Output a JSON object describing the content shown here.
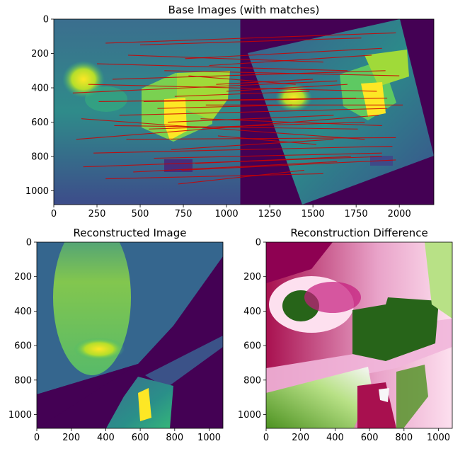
{
  "chart_data": [
    {
      "type": "image",
      "title": "Base Images (with matches)",
      "xlim": [
        0,
        2200
      ],
      "ylim": [
        1080,
        0
      ],
      "x_ticks": [
        0,
        250,
        500,
        750,
        1000,
        1250,
        1500,
        1750,
        2000
      ],
      "y_ticks": [
        0,
        200,
        400,
        600,
        800,
        1000
      ],
      "colormap": "viridis",
      "match_color": "#cc0000",
      "matches": [
        [
          200,
          380,
          1870,
          420
        ],
        [
          250,
          260,
          1700,
          300
        ],
        [
          110,
          430,
          1640,
          360
        ],
        [
          300,
          140,
          1980,
          80
        ],
        [
          130,
          700,
          1880,
          560
        ],
        [
          170,
          860,
          1900,
          800
        ],
        [
          350,
          620,
          1760,
          640
        ],
        [
          430,
          210,
          1560,
          250
        ],
        [
          520,
          480,
          1930,
          460
        ],
        [
          600,
          520,
          1380,
          500
        ],
        [
          680,
          760,
          1620,
          700
        ],
        [
          720,
          960,
          1450,
          880
        ],
        [
          780,
          330,
          1400,
          380
        ],
        [
          850,
          580,
          1900,
          620
        ],
        [
          900,
          270,
          1840,
          210
        ],
        [
          950,
          680,
          1520,
          730
        ],
        [
          1000,
          420,
          1700,
          380
        ],
        [
          230,
          780,
          1960,
          740
        ],
        [
          300,
          930,
          1560,
          900
        ],
        [
          380,
          560,
          1930,
          520
        ],
        [
          460,
          890,
          1640,
          830
        ],
        [
          550,
          640,
          1800,
          600
        ],
        [
          640,
          300,
          2000,
          330
        ],
        [
          700,
          450,
          1480,
          420
        ],
        [
          760,
          230,
          1900,
          170
        ],
        [
          820,
          840,
          1720,
          800
        ],
        [
          880,
          500,
          2020,
          500
        ],
        [
          940,
          380,
          1500,
          350
        ],
        [
          160,
          580,
          1800,
          700
        ],
        [
          260,
          480,
          1750,
          460
        ],
        [
          340,
          350,
          1920,
          300
        ],
        [
          420,
          700,
          1980,
          690
        ],
        [
          500,
          150,
          1780,
          110
        ],
        [
          580,
          810,
          1900,
          780
        ],
        [
          660,
          600,
          1620,
          560
        ],
        [
          740,
          880,
          1980,
          820
        ]
      ]
    },
    {
      "type": "image",
      "title": "Reconstructed Image",
      "xlim": [
        0,
        1080
      ],
      "ylim": [
        1080,
        0
      ],
      "x_ticks": [
        0,
        200,
        400,
        600,
        800,
        1000
      ],
      "y_ticks": [
        0,
        200,
        400,
        600,
        800,
        1000
      ],
      "colormap": "viridis"
    },
    {
      "type": "image",
      "title": "Reconstruction Difference",
      "xlim": [
        0,
        1080
      ],
      "ylim": [
        1080,
        0
      ],
      "x_ticks": [
        0,
        200,
        400,
        600,
        800,
        1000
      ],
      "y_ticks": [
        0,
        200,
        400,
        600,
        800,
        1000
      ],
      "colormap": "PiYG"
    }
  ]
}
